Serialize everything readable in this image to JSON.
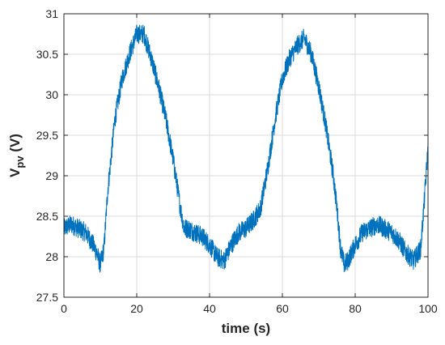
{
  "chart_data": {
    "type": "line",
    "xlabel": "time (s)",
    "ylabel": {
      "main": "V",
      "sub": "pv",
      "unit": " (V)"
    },
    "xlim": [
      0,
      100
    ],
    "ylim": [
      27.5,
      31
    ],
    "xticks": [
      0,
      20,
      40,
      60,
      80,
      100
    ],
    "yticks": [
      27.5,
      28,
      28.5,
      29,
      29.5,
      30,
      30.5,
      31
    ],
    "xtick_labels": [
      "0",
      "20",
      "40",
      "60",
      "80",
      "100"
    ],
    "ytick_labels": [
      "27.5",
      "28",
      "28.5",
      "29",
      "29.5",
      "30",
      "30.5",
      "31"
    ],
    "grid": true,
    "series": [
      {
        "color": "#0072BD",
        "noise_amplitude": 0.12,
        "x": [
          0,
          2,
          4,
          6,
          8,
          9,
          10,
          11,
          12,
          14,
          16,
          18,
          20,
          22,
          24,
          26,
          28,
          30,
          32,
          33,
          34,
          36,
          38,
          40,
          42,
          44,
          46,
          48,
          50,
          52,
          54,
          56,
          58,
          60,
          62,
          64,
          66,
          68,
          70,
          72,
          74,
          75,
          76,
          77,
          78,
          80,
          82,
          84,
          86,
          88,
          90,
          92,
          94,
          96,
          98,
          99,
          100
        ],
        "y": [
          28.35,
          28.4,
          28.35,
          28.3,
          28.15,
          28.05,
          27.9,
          28.1,
          28.8,
          29.7,
          30.2,
          30.5,
          30.75,
          30.75,
          30.45,
          30.1,
          29.7,
          29.2,
          28.6,
          28.35,
          28.35,
          28.3,
          28.25,
          28.15,
          28.0,
          27.95,
          28.15,
          28.3,
          28.35,
          28.45,
          28.6,
          29.1,
          29.7,
          30.2,
          30.45,
          30.6,
          30.7,
          30.5,
          30.1,
          29.6,
          29.0,
          28.6,
          28.1,
          27.9,
          27.95,
          28.15,
          28.3,
          28.35,
          28.4,
          28.35,
          28.3,
          28.2,
          28.05,
          27.95,
          28.1,
          28.7,
          29.35
        ]
      }
    ]
  }
}
